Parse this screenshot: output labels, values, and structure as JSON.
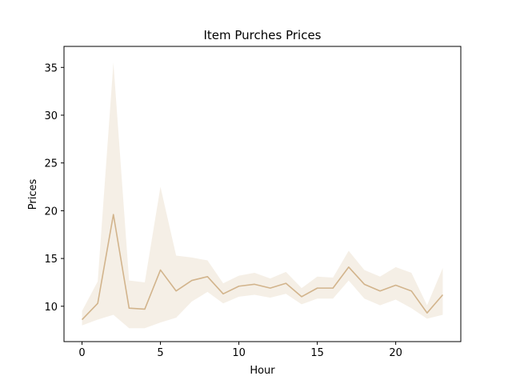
{
  "chart_data": {
    "type": "line",
    "title": "Item Purches Prices",
    "xlabel": "Hour",
    "ylabel": "Prices",
    "xlim": [
      -1.15,
      24.15
    ],
    "ylim": [
      6.3,
      37.2
    ],
    "xticks": [
      0,
      5,
      10,
      15,
      20
    ],
    "yticks": [
      10,
      15,
      20,
      25,
      30,
      35
    ],
    "grid": false,
    "legend": "none",
    "colors": {
      "line": "#d2b48c",
      "band": "#d2b48c"
    },
    "x": [
      0,
      1,
      2,
      3,
      4,
      5,
      6,
      7,
      8,
      9,
      10,
      11,
      12,
      13,
      14,
      15,
      16,
      17,
      18,
      19,
      20,
      21,
      22,
      23
    ],
    "series": [
      {
        "values": [
          8.6,
          10.3,
          19.6,
          9.8,
          9.7,
          13.8,
          11.6,
          12.7,
          13.1,
          11.3,
          12.1,
          12.3,
          11.9,
          12.4,
          11.0,
          11.9,
          11.9,
          14.1,
          12.3,
          11.6,
          12.2,
          11.6,
          9.3,
          11.2
        ],
        "ci_lower": [
          8.0,
          8.6,
          9.1,
          7.7,
          7.7,
          8.3,
          8.8,
          10.5,
          11.5,
          10.3,
          11.0,
          11.2,
          10.9,
          11.3,
          10.2,
          10.8,
          10.8,
          12.7,
          10.8,
          10.1,
          10.7,
          9.8,
          8.7,
          9.1
        ],
        "ci_upper": [
          9.5,
          12.6,
          35.5,
          12.7,
          12.5,
          22.5,
          15.3,
          15.1,
          14.8,
          12.4,
          13.2,
          13.5,
          12.9,
          13.6,
          11.9,
          13.1,
          13.0,
          15.8,
          13.8,
          13.1,
          14.1,
          13.5,
          10.1,
          14.0
        ]
      }
    ]
  }
}
